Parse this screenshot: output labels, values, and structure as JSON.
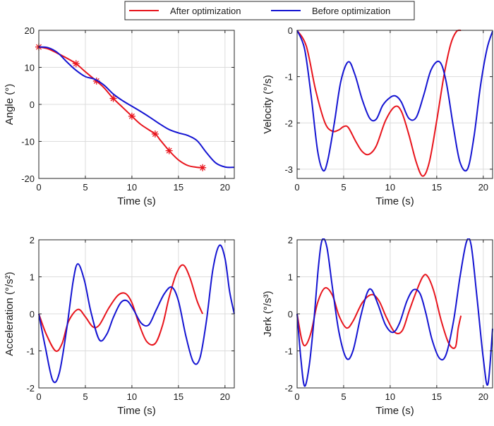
{
  "legend": {
    "items": [
      {
        "label": "After optimization",
        "color": "#e8141c"
      },
      {
        "label": "Before optimization",
        "color": "#1414d2"
      }
    ],
    "placement": "top-center"
  },
  "chart_data": [
    {
      "type": "line",
      "xlabel": "Time (s)",
      "ylabel": "Angle (°)",
      "xlim": [
        0,
        21
      ],
      "ylim": [
        -20,
        20
      ],
      "xticks": [
        0,
        5,
        10,
        15,
        20
      ],
      "yticks": [
        -20,
        -10,
        0,
        10,
        20
      ],
      "grid": true,
      "series": [
        {
          "name": "After optimization",
          "color": "#e8141c",
          "markers": "asterisk",
          "x": [
            0,
            1,
            2,
            3,
            4,
            5,
            6.2,
            7,
            8,
            9,
            10,
            11,
            12.5,
            13,
            14,
            15,
            16,
            17,
            17.6
          ],
          "y": [
            15.5,
            15,
            13.8,
            12.5,
            11,
            8.8,
            6.3,
            4.5,
            1.6,
            -0.8,
            -3.2,
            -5.5,
            -8,
            -9.5,
            -12.5,
            -15,
            -16.5,
            -17,
            -17.1
          ]
        },
        {
          "name": "Before optimization",
          "color": "#1414d2",
          "markers": "none",
          "x": [
            0,
            1,
            2,
            3,
            4,
            5,
            6,
            7,
            8,
            9,
            10,
            11,
            12,
            13,
            14,
            15,
            16,
            17,
            18,
            19,
            20,
            21
          ],
          "y": [
            15.5,
            15.3,
            14,
            11.5,
            9.2,
            7.5,
            6.8,
            5.2,
            2.8,
            1,
            -0.5,
            -2,
            -3.6,
            -5.3,
            -6.8,
            -7.7,
            -8.4,
            -9.8,
            -13,
            -15.8,
            -16.9,
            -17
          ]
        }
      ]
    },
    {
      "type": "line",
      "xlabel": "Time (s)",
      "ylabel": "Velocity (°/s)",
      "xlim": [
        0,
        21
      ],
      "ylim": [
        -3.2,
        0
      ],
      "xticks": [
        0,
        5,
        10,
        15,
        20
      ],
      "yticks": [
        -3,
        -2,
        -1,
        0
      ],
      "grid": true,
      "series": [
        {
          "name": "After optimization",
          "color": "#e8141c",
          "x": [
            0,
            1,
            2,
            3,
            3.8,
            4.5,
            5,
            5.5,
            6.3,
            7,
            7.7,
            8.5,
            9.5,
            10.5,
            11.2,
            12,
            12.8,
            13.5,
            14.2,
            15,
            15.8,
            16.5,
            17.1,
            17.6
          ],
          "y": [
            0,
            -0.35,
            -1.3,
            -2.0,
            -2.18,
            -2.15,
            -2.08,
            -2.1,
            -2.4,
            -2.62,
            -2.68,
            -2.5,
            -1.95,
            -1.65,
            -1.75,
            -2.25,
            -2.85,
            -3.15,
            -2.85,
            -1.95,
            -0.95,
            -0.3,
            -0.03,
            0
          ]
        },
        {
          "name": "Before optimization",
          "color": "#1414d2",
          "x": [
            0,
            0.8,
            1.5,
            2.2,
            2.8,
            3.3,
            4,
            4.7,
            5.5,
            6.2,
            7,
            7.8,
            8.5,
            9.2,
            10,
            10.6,
            11.2,
            12,
            12.8,
            13.6,
            14.4,
            15.3,
            16,
            16.8,
            17.5,
            18.3,
            19,
            19.7,
            20.4,
            21
          ],
          "y": [
            0,
            -0.4,
            -1.4,
            -2.6,
            -3.03,
            -2.8,
            -2.0,
            -1.1,
            -0.68,
            -0.95,
            -1.5,
            -1.9,
            -1.92,
            -1.62,
            -1.45,
            -1.42,
            -1.55,
            -1.9,
            -1.88,
            -1.4,
            -0.85,
            -0.68,
            -1.1,
            -2.1,
            -2.85,
            -3.0,
            -2.3,
            -1.2,
            -0.4,
            -0.02
          ]
        }
      ]
    },
    {
      "type": "line",
      "xlabel": "Time (s)",
      "ylabel": "Acceleration (°/s²)",
      "xlim": [
        0,
        21
      ],
      "ylim": [
        -2,
        2
      ],
      "xticks": [
        0,
        5,
        10,
        15,
        20
      ],
      "yticks": [
        -2,
        -1,
        0,
        1,
        2
      ],
      "grid": true,
      "series": [
        {
          "name": "After optimization",
          "color": "#e8141c",
          "x": [
            0,
            0.8,
            1.8,
            2.5,
            3.2,
            4.2,
            5,
            5.8,
            6.5,
            7.5,
            8.5,
            9.3,
            10,
            10.8,
            11.6,
            12.5,
            13.3,
            14,
            14.8,
            15.5,
            16.2,
            17,
            17.6
          ],
          "y": [
            0,
            -0.55,
            -1.0,
            -0.8,
            -0.2,
            0.12,
            -0.08,
            -0.35,
            -0.3,
            0.15,
            0.5,
            0.55,
            0.3,
            -0.3,
            -0.75,
            -0.8,
            -0.3,
            0.45,
            1.1,
            1.32,
            1.0,
            0.35,
            0
          ]
        },
        {
          "name": "Before optimization",
          "color": "#1414d2",
          "x": [
            0,
            0.7,
            1.5,
            2.2,
            3,
            3.7,
            4.2,
            4.9,
            5.6,
            6.5,
            7.3,
            8,
            8.8,
            9.5,
            10.2,
            11,
            11.8,
            12.6,
            13.5,
            14.3,
            15,
            15.8,
            16.6,
            17.3,
            18,
            18.7,
            19.4,
            20,
            20.5,
            21
          ],
          "y": [
            0,
            -0.9,
            -1.8,
            -1.6,
            -0.4,
            0.9,
            1.35,
            0.9,
            0.05,
            -0.7,
            -0.55,
            -0.1,
            0.3,
            0.35,
            0.1,
            -0.25,
            -0.3,
            0.1,
            0.55,
            0.72,
            0.35,
            -0.6,
            -1.3,
            -1.2,
            -0.2,
            1.2,
            1.85,
            1.5,
            0.6,
            0
          ]
        }
      ]
    },
    {
      "type": "line",
      "xlabel": "Time (s)",
      "ylabel": "Jerk (°/s³)",
      "xlim": [
        0,
        21
      ],
      "ylim": [
        -2,
        2
      ],
      "xticks": [
        0,
        5,
        10,
        15,
        20
      ],
      "yticks": [
        -2,
        -1,
        0,
        1,
        2
      ],
      "grid": true,
      "series": [
        {
          "name": "After optimization",
          "color": "#e8141c",
          "x": [
            0,
            0.5,
            0.9,
            1.5,
            2.2,
            3,
            3.8,
            4.5,
            5.3,
            6,
            7,
            8,
            8.8,
            9.6,
            10.5,
            11.3,
            12,
            12.8,
            13.5,
            14,
            14.7,
            15.5,
            16.3,
            17,
            17.3,
            17.6
          ],
          "y": [
            0,
            -0.7,
            -0.85,
            -0.5,
            0.3,
            0.7,
            0.5,
            -0.05,
            -0.38,
            -0.2,
            0.3,
            0.52,
            0.35,
            -0.1,
            -0.5,
            -0.45,
            0.05,
            0.6,
            1.0,
            1.02,
            0.6,
            -0.2,
            -0.8,
            -0.9,
            -0.4,
            -0.05
          ]
        },
        {
          "name": "Before optimization",
          "color": "#1414d2",
          "x": [
            0,
            0.4,
            0.8,
            1.3,
            1.8,
            2.3,
            2.7,
            3.2,
            3.8,
            4.5,
            5.3,
            6,
            6.8,
            7.5,
            8,
            8.7,
            9.5,
            10.3,
            11,
            11.8,
            12.5,
            13.2,
            13.8,
            14.5,
            15.3,
            16,
            16.8,
            17.5,
            18.2,
            18.7,
            19.3,
            20,
            20.5,
            21
          ],
          "y": [
            0,
            -1.2,
            -1.95,
            -1.4,
            -0.2,
            1.3,
            2.0,
            1.8,
            0.7,
            -0.5,
            -1.2,
            -1.0,
            -0.1,
            0.55,
            0.65,
            0.25,
            -0.3,
            -0.5,
            -0.25,
            0.35,
            0.65,
            0.55,
            0.05,
            -0.7,
            -1.2,
            -1.1,
            -0.2,
            1.0,
            1.95,
            1.85,
            0.5,
            -1.2,
            -1.9,
            -0.4
          ]
        }
      ]
    }
  ]
}
